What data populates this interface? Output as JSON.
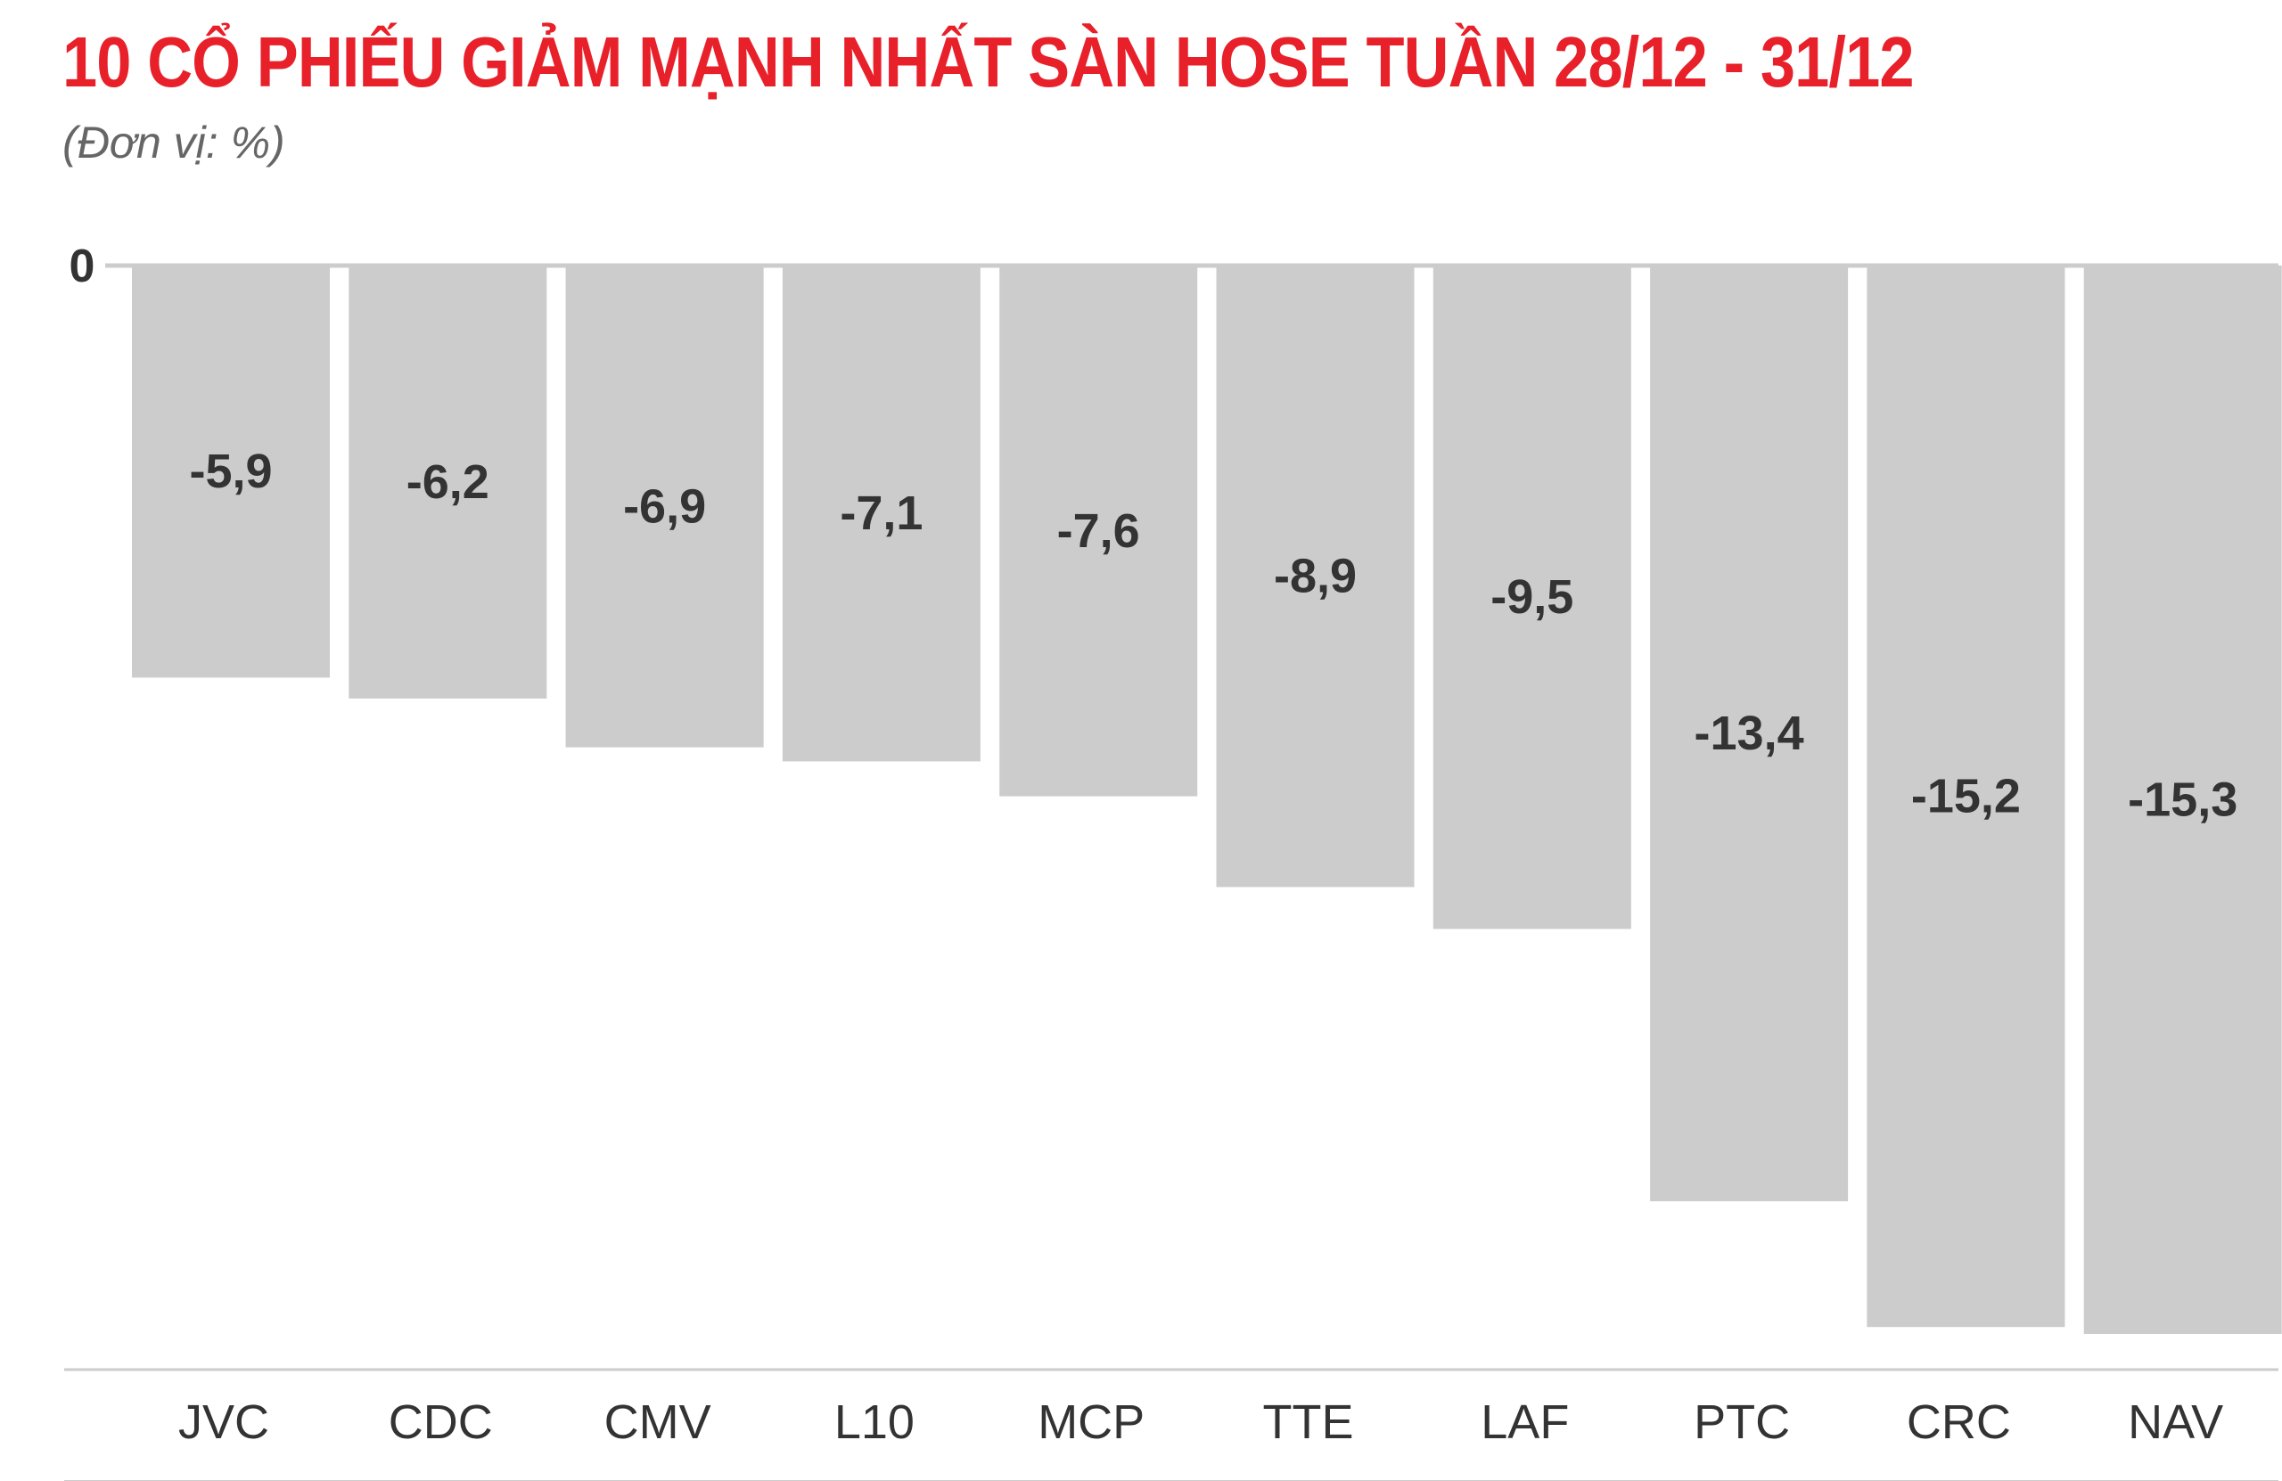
{
  "colors": {
    "title": "#e8202a",
    "subtitle": "#666666",
    "bar": "#cccccc",
    "value_text": "#333333",
    "category_text": "#333333",
    "axis_line": "#cccccc"
  },
  "chart_data": {
    "type": "bar",
    "title": "10 CỔ PHIẾU GIẢM MẠNH NHẤT SÀN HOSE TUẦN 28/12 - 31/12",
    "subtitle": "(Đơn vị: %)",
    "categories": [
      "JVC",
      "CDC",
      "CMV",
      "L10",
      "MCP",
      "TTE",
      "LAF",
      "PTC",
      "CRC",
      "NAV"
    ],
    "values": [
      -5.9,
      -6.2,
      -6.9,
      -7.1,
      -7.6,
      -8.9,
      -9.5,
      -13.4,
      -15.2,
      -15.3
    ],
    "value_labels": [
      "-5,9",
      "-6,2",
      "-6,9",
      "-7,1",
      "-7,6",
      "-8,9",
      "-9,5",
      "-13,4",
      "-15,2",
      "-15,3"
    ],
    "zero_label": "0",
    "ylim": [
      -15.3,
      0
    ],
    "xlabel": "",
    "ylabel": "",
    "legend": "none",
    "grid": false
  }
}
